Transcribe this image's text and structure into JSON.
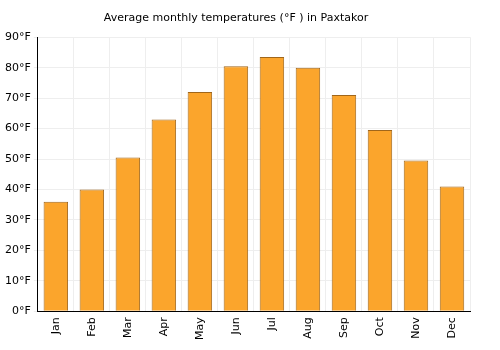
{
  "chart_data": {
    "type": "bar",
    "title": "Average monthly temperatures (°F ) in Paxtakor",
    "categories": [
      "Jan",
      "Feb",
      "Mar",
      "Apr",
      "May",
      "Jun",
      "Jul",
      "Aug",
      "Sep",
      "Oct",
      "Nov",
      "Dec"
    ],
    "values": [
      36,
      40,
      50.5,
      63,
      72,
      80.5,
      83.5,
      80,
      71,
      59.5,
      49.5,
      41
    ],
    "color": "#fba52c",
    "ylim": [
      0,
      90
    ],
    "yticks": [
      {
        "value": 0,
        "label": "0°F"
      },
      {
        "value": 10,
        "label": "10°F"
      },
      {
        "value": 20,
        "label": "20°F"
      },
      {
        "value": 30,
        "label": "30°F"
      },
      {
        "value": 40,
        "label": "40°F"
      },
      {
        "value": 50,
        "label": "50°F"
      },
      {
        "value": 60,
        "label": "60°F"
      },
      {
        "value": 70,
        "label": "70°F"
      },
      {
        "value": 80,
        "label": "80°F"
      },
      {
        "value": 90,
        "label": "90°F"
      }
    ],
    "grid": true
  }
}
